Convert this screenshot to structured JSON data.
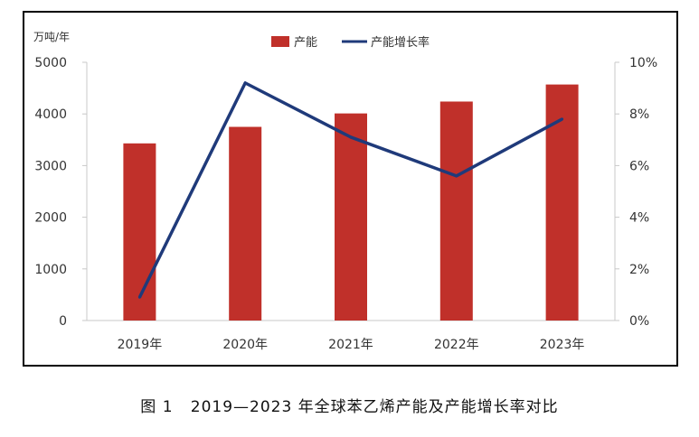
{
  "chart_data": {
    "type": "bar",
    "categories": [
      "2019年",
      "2020年",
      "2021年",
      "2022年",
      "2023年"
    ],
    "series": [
      {
        "name": "产能",
        "type": "bar",
        "axis": "left",
        "values": [
          3430,
          3750,
          4010,
          4240,
          4570
        ]
      },
      {
        "name": "产能增长率",
        "type": "line",
        "axis": "right",
        "values": [
          0.9,
          9.2,
          7.1,
          5.6,
          7.8
        ]
      }
    ],
    "left_axis": {
      "unit": "万吨/年",
      "ylim": [
        0,
        5000
      ],
      "ticks": [
        "0",
        "1000",
        "2000",
        "3000",
        "4000",
        "5000"
      ]
    },
    "right_axis": {
      "ylim": [
        0,
        10
      ],
      "ticks": [
        "0%",
        "2%",
        "4%",
        "6%",
        "8%",
        "10%"
      ]
    },
    "legend": {
      "placement": "top-center",
      "items": [
        "产能",
        "产能增长率"
      ]
    },
    "colors": {
      "bar": "#c0302a",
      "line": "#1f3a7a",
      "axis": "#c8c8c8",
      "text": "#333333"
    },
    "grid": false
  },
  "caption": {
    "figure_label": "图 1",
    "text": "2019—2023 年全球苯乙烯产能及产能增长率对比"
  }
}
